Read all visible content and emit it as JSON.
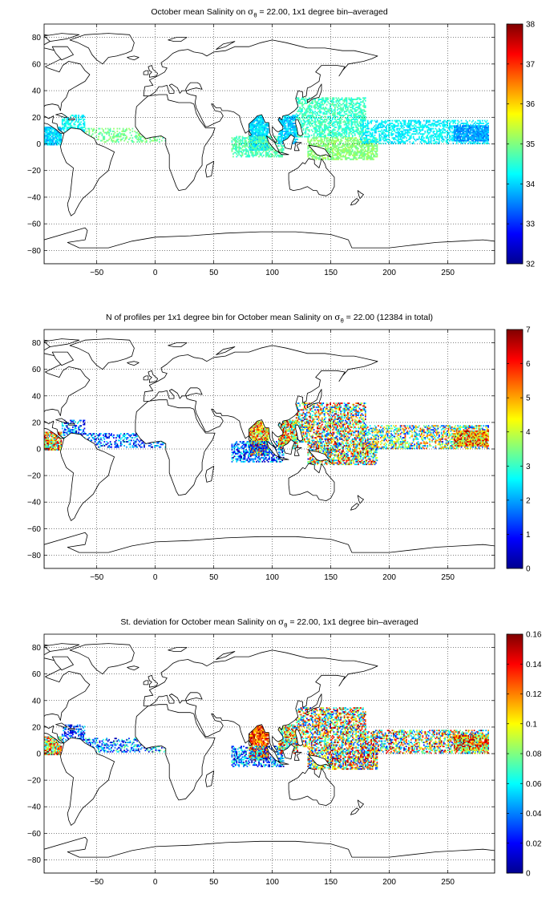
{
  "colormap": {
    "name": "jet",
    "stops": [
      "#00008f",
      "#0000ff",
      "#0080ff",
      "#00ffff",
      "#80ff80",
      "#ffff00",
      "#ff8000",
      "#ff0000",
      "#800000"
    ]
  },
  "land_color": "#ffffff",
  "coast_color": "#000000",
  "chart_data": [
    {
      "type": "heatmap",
      "title": "October mean Salinity on σθ = 22.00, 1x1 degree bin–averaged",
      "title_parts": {
        "before": "October mean Salinity on ",
        "symbol": "σ",
        "subscript": "θ",
        "after": " = 22.00, 1x1 degree bin–averaged"
      },
      "xlabel": "",
      "ylabel": "",
      "xlim": [
        -95,
        290
      ],
      "ylim": [
        -90,
        90
      ],
      "xticks": [
        -50,
        0,
        50,
        100,
        150,
        200,
        250
      ],
      "yticks": [
        -80,
        -60,
        -40,
        -20,
        0,
        20,
        40,
        60,
        80
      ],
      "grid": true,
      "colorbar": {
        "min": 32,
        "max": 38,
        "ticks": [
          32,
          33,
          34,
          35,
          36,
          37,
          38
        ]
      },
      "regions": [
        {
          "name": "eastern-pacific",
          "lon": [
            -95,
            -80
          ],
          "lat": [
            -1,
            13
          ],
          "value": [
            33.6,
            34.4
          ],
          "density": 0.85
        },
        {
          "name": "caribbean",
          "lon": [
            -80,
            -60
          ],
          "lat": [
            8,
            22
          ],
          "value": [
            33.9,
            34.6
          ],
          "density": 0.5
        },
        {
          "name": "atlantic-band",
          "lon": [
            -60,
            10
          ],
          "lat": [
            1,
            12
          ],
          "value": [
            34.6,
            35.2
          ],
          "density": 0.35
        },
        {
          "name": "bay-of-bengal",
          "lon": [
            80,
            97
          ],
          "lat": [
            -5,
            22
          ],
          "value": [
            33.6,
            34.4
          ],
          "density": 0.9
        },
        {
          "name": "indian-ocean",
          "lon": [
            65,
            110
          ],
          "lat": [
            -10,
            6
          ],
          "value": [
            34.4,
            35.0
          ],
          "density": 0.55
        },
        {
          "name": "south-china-sea",
          "lon": [
            105,
            122
          ],
          "lat": [
            0,
            22
          ],
          "value": [
            33.6,
            34.3
          ],
          "density": 0.75
        },
        {
          "name": "west-pacific-north",
          "lon": [
            120,
            180
          ],
          "lat": [
            5,
            35
          ],
          "value": [
            34.3,
            34.9
          ],
          "density": 0.55
        },
        {
          "name": "west-pacific-south",
          "lon": [
            130,
            190
          ],
          "lat": [
            -12,
            5
          ],
          "value": [
            34.8,
            35.3
          ],
          "density": 0.65
        },
        {
          "name": "pacific-band",
          "lon": [
            175,
            285
          ],
          "lat": [
            0,
            18
          ],
          "value": [
            33.9,
            34.5
          ],
          "density": 0.5
        },
        {
          "name": "panama-pacific",
          "lon": [
            255,
            285
          ],
          "lat": [
            2,
            14
          ],
          "value": [
            33.3,
            34.0
          ],
          "density": 0.85
        }
      ]
    },
    {
      "type": "heatmap",
      "title": "N of profiles per 1x1 degree bin for October mean Salinity on σθ = 22.00 (12384 in total)",
      "title_parts": {
        "before": "N of profiles per 1x1 degree bin for October mean Salinity on ",
        "symbol": "σ",
        "subscript": "θ",
        "after": " = 22.00 (12384 in total)"
      },
      "xlabel": "",
      "ylabel": "",
      "xlim": [
        -95,
        290
      ],
      "ylim": [
        -90,
        90
      ],
      "xticks": [
        -50,
        0,
        50,
        100,
        150,
        200,
        250
      ],
      "yticks": [
        -80,
        -60,
        -40,
        -20,
        0,
        20,
        40,
        60,
        80
      ],
      "grid": true,
      "total_profiles": 12384,
      "colorbar": {
        "min": 0,
        "max": 7,
        "ticks": [
          0,
          1,
          2,
          3,
          4,
          5,
          6,
          7
        ]
      },
      "regions": [
        {
          "name": "eastern-pacific",
          "lon": [
            -95,
            -80
          ],
          "lat": [
            -1,
            13
          ],
          "value": [
            2,
            7
          ],
          "density": 0.85
        },
        {
          "name": "caribbean",
          "lon": [
            -80,
            -60
          ],
          "lat": [
            8,
            22
          ],
          "value": [
            0,
            3
          ],
          "density": 0.45
        },
        {
          "name": "atlantic-band",
          "lon": [
            -60,
            10
          ],
          "lat": [
            1,
            12
          ],
          "value": [
            0,
            3
          ],
          "density": 0.35
        },
        {
          "name": "bay-of-bengal",
          "lon": [
            80,
            97
          ],
          "lat": [
            -5,
            22
          ],
          "value": [
            3,
            7
          ],
          "density": 0.9
        },
        {
          "name": "indian-ocean",
          "lon": [
            65,
            110
          ],
          "lat": [
            -10,
            6
          ],
          "value": [
            0,
            3
          ],
          "density": 0.5
        },
        {
          "name": "south-china-sea",
          "lon": [
            105,
            122
          ],
          "lat": [
            0,
            22
          ],
          "value": [
            2,
            7
          ],
          "density": 0.75
        },
        {
          "name": "west-pacific-north",
          "lon": [
            120,
            180
          ],
          "lat": [
            5,
            35
          ],
          "value": [
            1,
            7
          ],
          "density": 0.55
        },
        {
          "name": "west-pacific-south",
          "lon": [
            130,
            190
          ],
          "lat": [
            -12,
            5
          ],
          "value": [
            1,
            7
          ],
          "density": 0.65
        },
        {
          "name": "pacific-band",
          "lon": [
            175,
            285
          ],
          "lat": [
            0,
            18
          ],
          "value": [
            1,
            6
          ],
          "density": 0.5
        },
        {
          "name": "panama-pacific",
          "lon": [
            255,
            285
          ],
          "lat": [
            2,
            14
          ],
          "value": [
            3,
            7
          ],
          "density": 0.85
        }
      ]
    },
    {
      "type": "heatmap",
      "title": "St. deviation for October mean Salinity on σθ = 22.00, 1x1 degree bin–averaged",
      "title_parts": {
        "before": "St. deviation for October mean Salinity on ",
        "symbol": "σ",
        "subscript": "θ",
        "after": " = 22.00, 1x1 degree bin–averaged"
      },
      "xlabel": "",
      "ylabel": "",
      "xlim": [
        -95,
        290
      ],
      "ylim": [
        -90,
        90
      ],
      "xticks": [
        -50,
        0,
        50,
        100,
        150,
        200,
        250
      ],
      "yticks": [
        -80,
        -60,
        -40,
        -20,
        0,
        20,
        40,
        60,
        80
      ],
      "grid": true,
      "colorbar": {
        "min": 0,
        "max": 0.16,
        "ticks": [
          0,
          0.02,
          0.04,
          0.06,
          0.08,
          0.1,
          0.12,
          0.14,
          0.16
        ]
      },
      "regions": [
        {
          "name": "eastern-pacific",
          "lon": [
            -95,
            -80
          ],
          "lat": [
            -1,
            13
          ],
          "value": [
            0.05,
            0.16
          ],
          "density": 0.85
        },
        {
          "name": "caribbean",
          "lon": [
            -80,
            -60
          ],
          "lat": [
            8,
            22
          ],
          "value": [
            0.0,
            0.06
          ],
          "density": 0.45
        },
        {
          "name": "atlantic-band",
          "lon": [
            -60,
            10
          ],
          "lat": [
            1,
            12
          ],
          "value": [
            0.0,
            0.08
          ],
          "density": 0.35
        },
        {
          "name": "bay-of-bengal",
          "lon": [
            80,
            97
          ],
          "lat": [
            -5,
            22
          ],
          "value": [
            0.1,
            0.16
          ],
          "density": 0.9
        },
        {
          "name": "indian-ocean",
          "lon": [
            65,
            110
          ],
          "lat": [
            -10,
            6
          ],
          "value": [
            0.0,
            0.08
          ],
          "density": 0.5
        },
        {
          "name": "south-china-sea",
          "lon": [
            105,
            122
          ],
          "lat": [
            0,
            22
          ],
          "value": [
            0.04,
            0.16
          ],
          "density": 0.75
        },
        {
          "name": "west-pacific-north",
          "lon": [
            120,
            180
          ],
          "lat": [
            5,
            35
          ],
          "value": [
            0.02,
            0.16
          ],
          "density": 0.55
        },
        {
          "name": "west-pacific-south",
          "lon": [
            130,
            190
          ],
          "lat": [
            -12,
            5
          ],
          "value": [
            0.02,
            0.16
          ],
          "density": 0.65
        },
        {
          "name": "pacific-band",
          "lon": [
            175,
            285
          ],
          "lat": [
            0,
            18
          ],
          "value": [
            0.02,
            0.16
          ],
          "density": 0.5
        },
        {
          "name": "panama-pacific",
          "lon": [
            255,
            285
          ],
          "lat": [
            2,
            14
          ],
          "value": [
            0.06,
            0.16
          ],
          "density": 0.85
        }
      ]
    }
  ]
}
